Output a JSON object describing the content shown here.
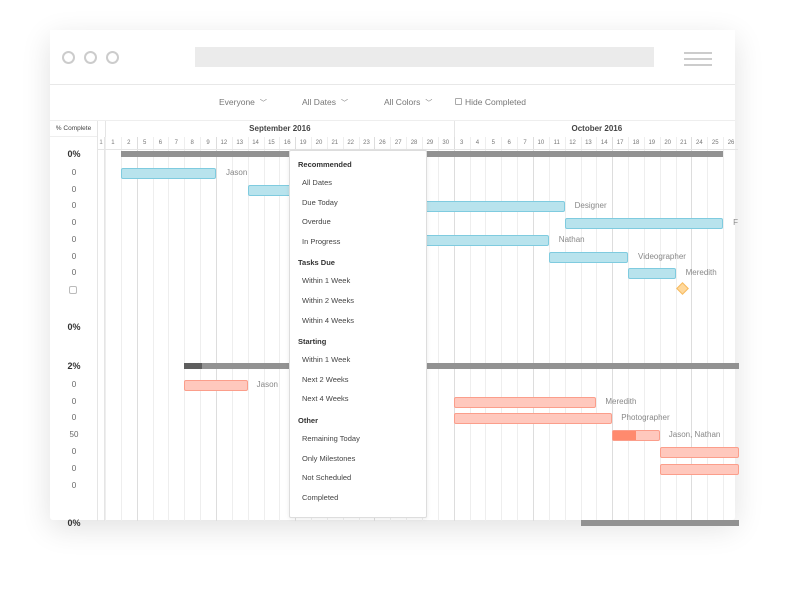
{
  "toolbar": {
    "everyone": "Everyone",
    "all_dates": "All Dates",
    "all_colors": "All Colors",
    "hide_completed": "Hide Completed"
  },
  "gantt": {
    "pct_header": "% Complete",
    "first_col_day": "1",
    "months": [
      {
        "label": "September 2016",
        "start": 0,
        "end": 22
      },
      {
        "label": "October 2016",
        "start": 22,
        "end": 40
      }
    ],
    "days": [
      "1",
      "2",
      "5",
      "6",
      "7",
      "8",
      "9",
      "12",
      "13",
      "14",
      "15",
      "16",
      "19",
      "20",
      "21",
      "22",
      "23",
      "26",
      "27",
      "28",
      "29",
      "30",
      "3",
      "4",
      "5",
      "6",
      "7",
      "10",
      "11",
      "12",
      "13",
      "14",
      "17",
      "18",
      "19",
      "20",
      "21",
      "24",
      "25",
      "26"
    ],
    "week_starts": [
      2,
      7,
      12,
      17,
      22,
      27,
      32,
      37
    ],
    "rows": [
      {
        "pct": "0%",
        "bold": true,
        "summary": {
          "start": 1,
          "end": 39,
          "done": 0
        }
      },
      {
        "pct": "0",
        "bar": {
          "start": 1,
          "end": 7,
          "color": "blue"
        },
        "label": "Jason"
      },
      {
        "pct": "0",
        "bar": {
          "start": 9,
          "end": 14,
          "color": "blue"
        }
      },
      {
        "pct": "0",
        "bar": {
          "start": 20,
          "end": 29,
          "color": "blue"
        },
        "label": "Designer"
      },
      {
        "pct": "0",
        "bar": {
          "start": 29,
          "end": 39,
          "color": "blue"
        },
        "label": "F"
      },
      {
        "pct": "0",
        "bar": {
          "start": 20,
          "end": 28,
          "color": "blue"
        },
        "label": "Nathan"
      },
      {
        "pct": "0",
        "bar": {
          "start": 28,
          "end": 33,
          "color": "blue"
        },
        "label": "Videographer"
      },
      {
        "pct": "0",
        "bar": {
          "start": 33,
          "end": 36,
          "color": "blue"
        },
        "label": "Meredith"
      },
      {
        "checkbox": true,
        "milestone": 36.5
      },
      {
        "pct": ""
      },
      {
        "pct": "0%",
        "bold": true
      },
      {
        "pct": ""
      },
      {
        "pct": "2%",
        "bold": true,
        "summary": {
          "start": 5,
          "end": 40,
          "done": 1.1
        }
      },
      {
        "pct": "0",
        "bar": {
          "start": 5,
          "end": 9,
          "color": "red"
        },
        "label": "Jason"
      },
      {
        "pct": "0",
        "bar": {
          "start": 22,
          "end": 31,
          "color": "red"
        },
        "label": "Meredith"
      },
      {
        "pct": "0",
        "bar": {
          "start": 22,
          "end": 32,
          "color": "red"
        },
        "label": "Photographer"
      },
      {
        "pct": "50",
        "bar": {
          "start": 32,
          "end": 35,
          "color": "red",
          "progress": 50
        },
        "label": "Jason, Nathan"
      },
      {
        "pct": "0",
        "bar": {
          "start": 35,
          "end": 40,
          "color": "red"
        }
      },
      {
        "pct": "0",
        "bar": {
          "start": 35,
          "end": 40,
          "color": "red"
        }
      },
      {
        "pct": "0"
      },
      {
        "pct": ""
      },
      {
        "pct": "0%",
        "bold": true,
        "summary": {
          "start": 30,
          "end": 40,
          "done": 0
        }
      }
    ]
  },
  "dropdown": {
    "sections": [
      {
        "title": "Recommended",
        "items": [
          "All Dates",
          "Due Today",
          "Overdue",
          "In Progress"
        ]
      },
      {
        "title": "Tasks Due",
        "items": [
          "Within 1 Week",
          "Within 2 Weeks",
          "Within 4 Weeks"
        ]
      },
      {
        "title": "Starting",
        "items": [
          "Within 1 Week",
          "Next 2 Weeks",
          "Next 4 Weeks"
        ]
      },
      {
        "title": "Other",
        "items": [
          "Remaining Today",
          "Only Milestones",
          "Not Scheduled",
          "Completed"
        ]
      }
    ]
  }
}
